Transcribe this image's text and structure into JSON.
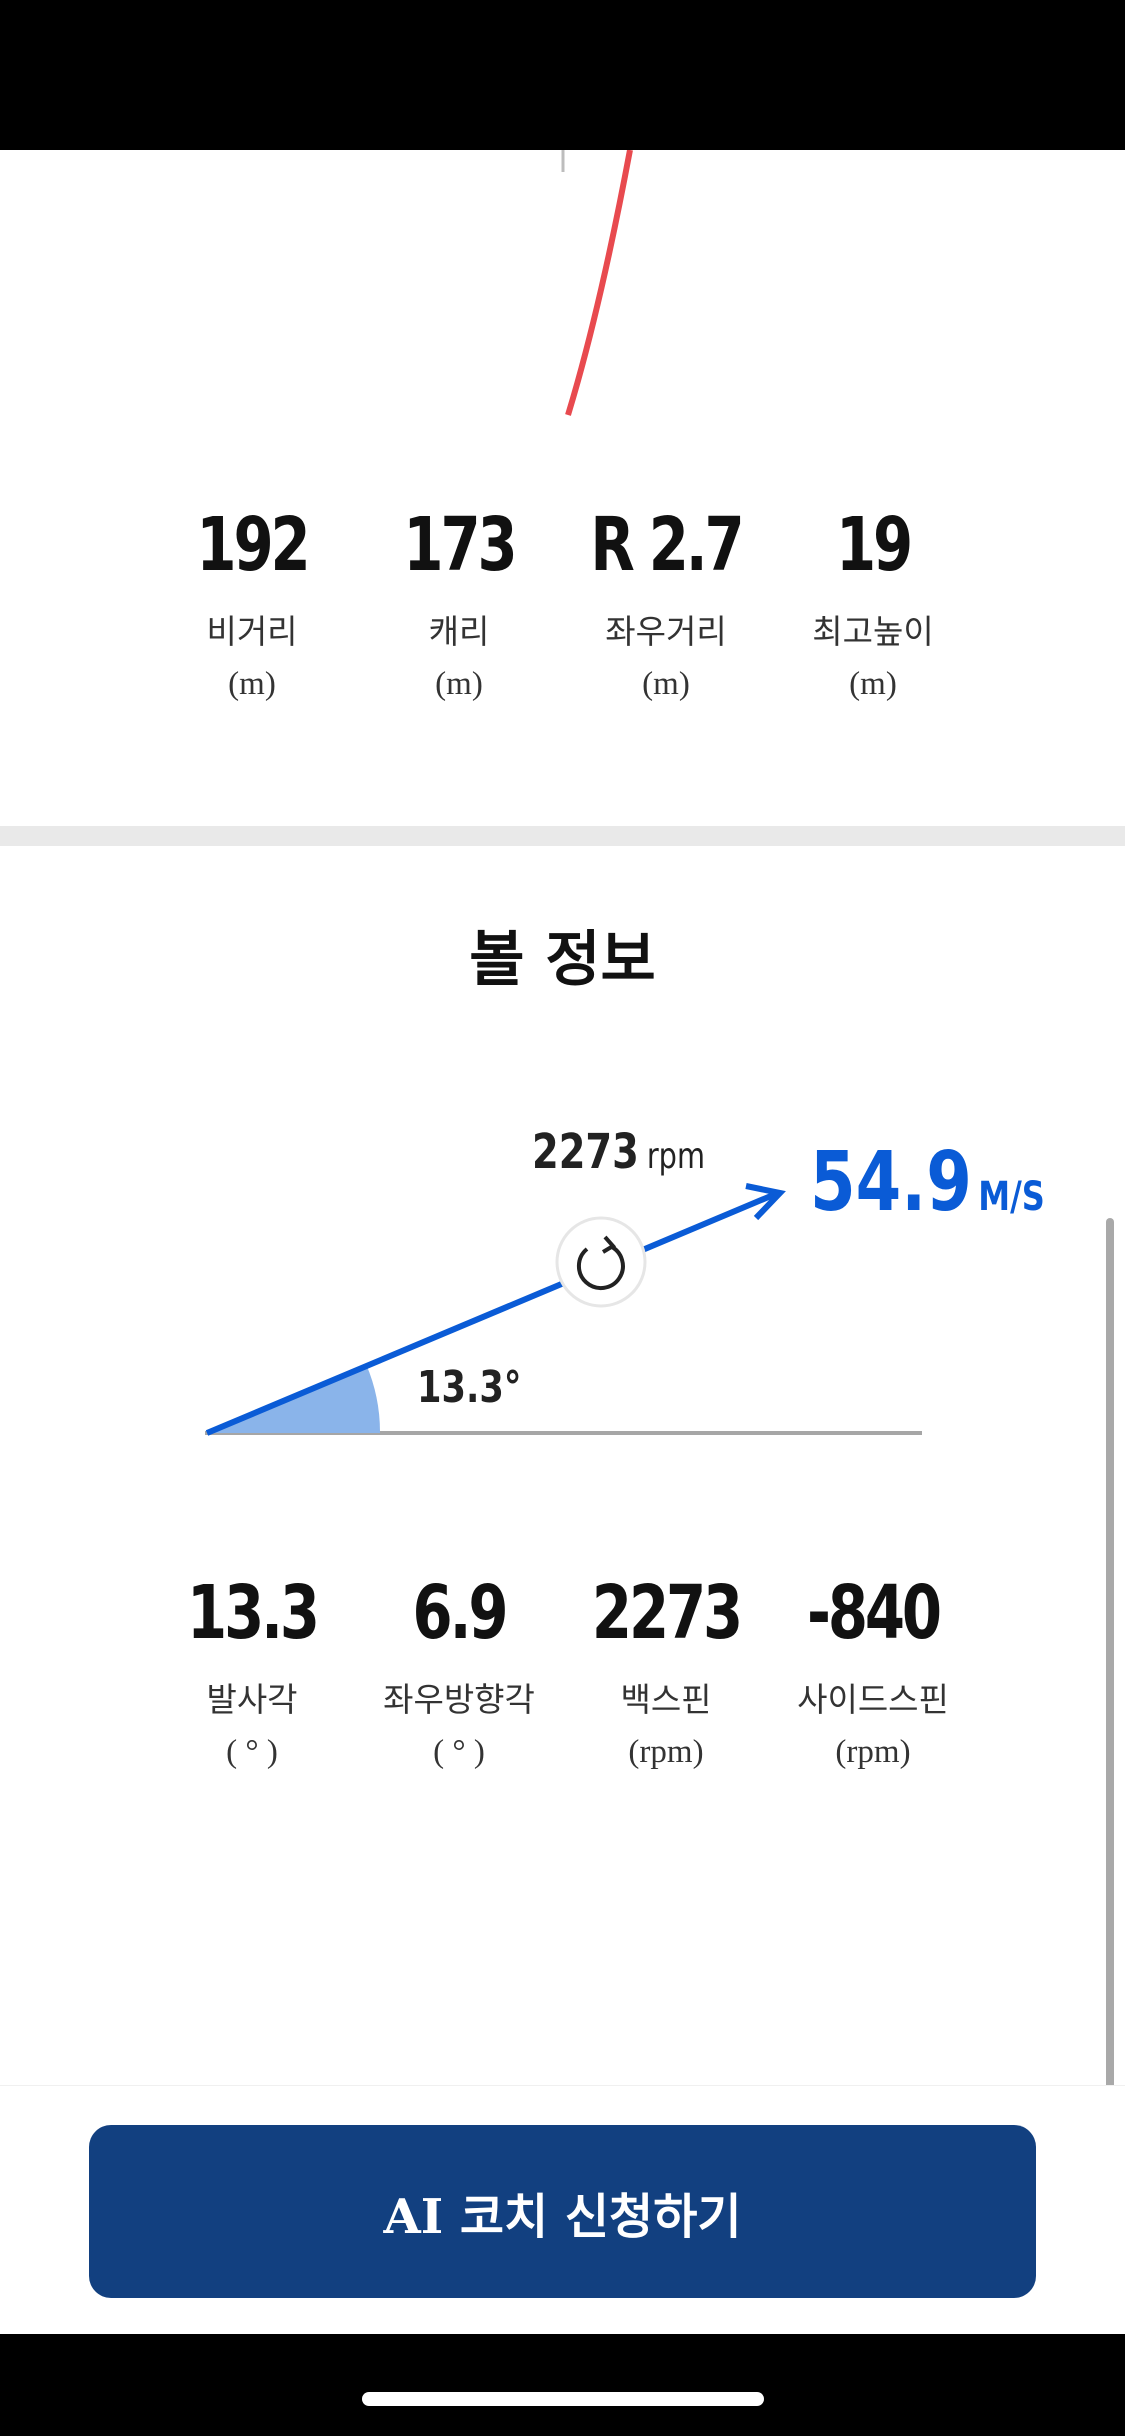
{
  "shot_stats": [
    {
      "value": "192",
      "label": "비거리",
      "unit": "(m)"
    },
    {
      "value": "173",
      "label": "캐리",
      "unit": "(m)"
    },
    {
      "value": "R 2.7",
      "label": "좌우거리",
      "unit": "(m)"
    },
    {
      "value": "19",
      "label": "최고높이",
      "unit": "(m)"
    }
  ],
  "ball_info": {
    "title": "볼 정보",
    "spin_value": "2273",
    "spin_unit": "rpm",
    "speed_value": "54.9",
    "speed_unit": "M/S",
    "angle_label": "13.3°",
    "spin_icon": "rotate-ccw-icon"
  },
  "ball_stats": [
    {
      "value": "13.3",
      "label": "발사각",
      "unit": "( ° )"
    },
    {
      "value": "6.9",
      "label": "좌우방향각",
      "unit": "( ° )"
    },
    {
      "value": "2273",
      "label": "백스핀",
      "unit": "(rpm)"
    },
    {
      "value": "-840",
      "label": "사이드스핀",
      "unit": "(rpm)"
    }
  ],
  "cta": {
    "label": "AI 코치 신청하기"
  },
  "colors": {
    "accent_blue": "#0a5bd6",
    "button_navy": "#124080",
    "trajectory_red": "#e84a4f",
    "angle_fill": "#8ab4ea"
  }
}
